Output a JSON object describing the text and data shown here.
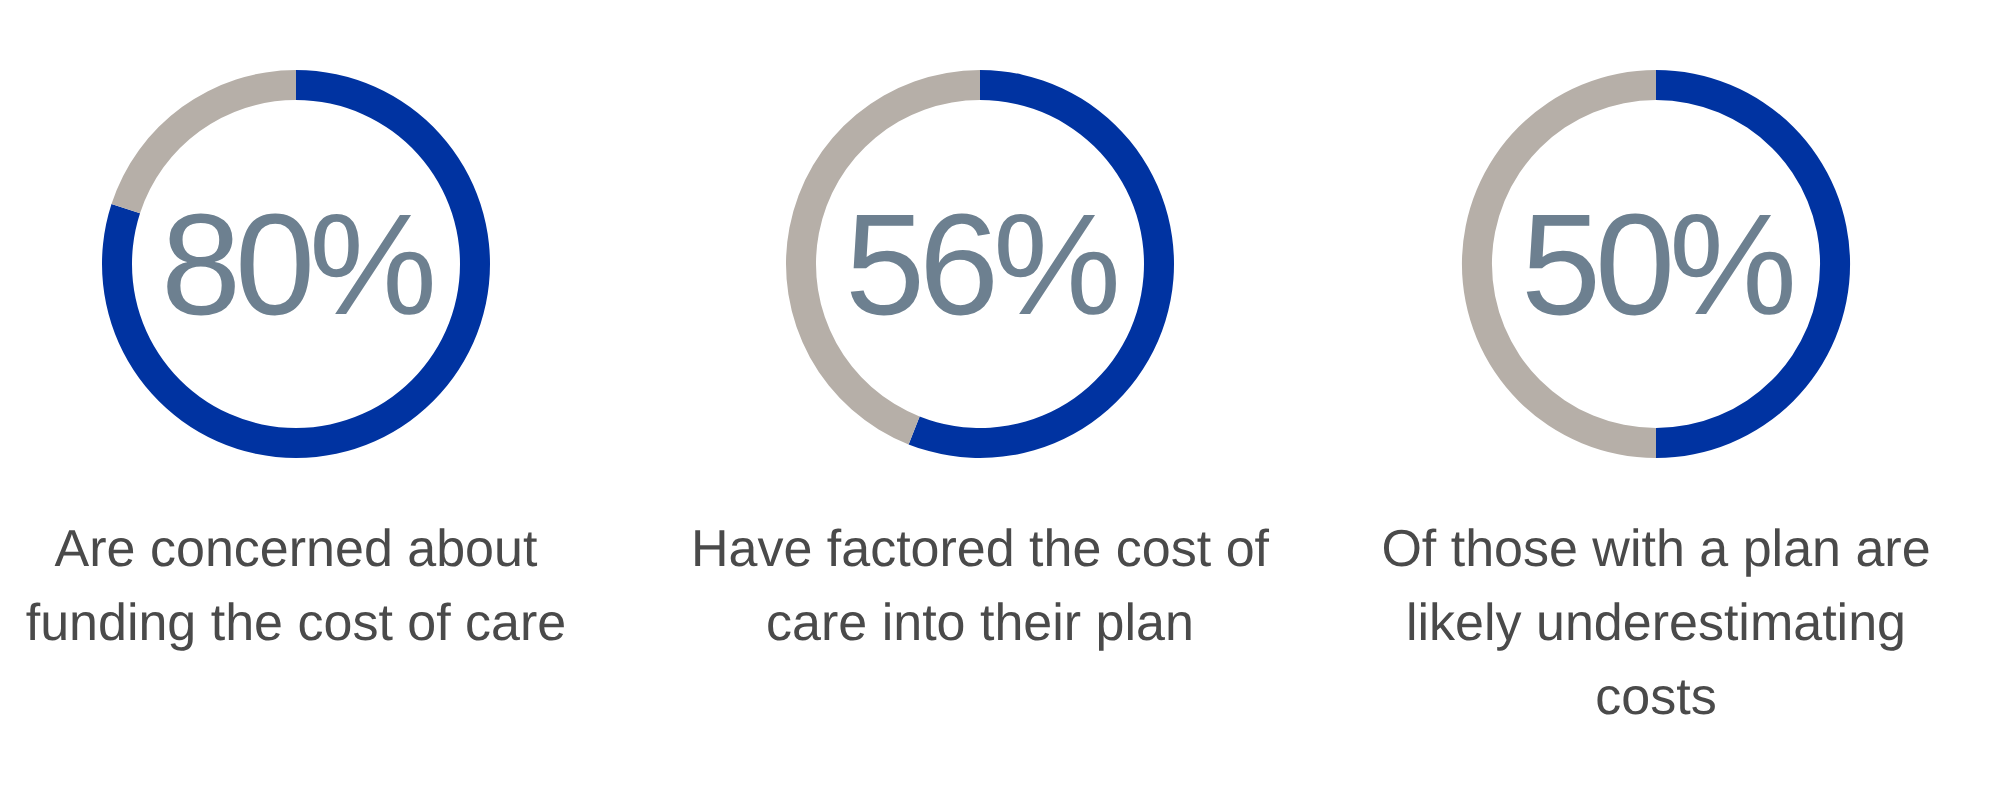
{
  "chart_data": [
    {
      "type": "donut",
      "title": "Are concerned about funding the cost of care",
      "categories": [
        null,
        null
      ],
      "values": [
        80,
        20
      ],
      "colors": [
        "#0033a1",
        "#b6afa8"
      ],
      "value_labels": [
        "80%",
        null
      ]
    },
    {
      "type": "donut",
      "title": "Have factored the cost of care into their plan",
      "categories": [
        null,
        null
      ],
      "values": [
        56,
        44
      ],
      "colors": [
        "#0033a1",
        "#b6afa8"
      ],
      "value_labels": [
        "56%",
        null
      ]
    },
    {
      "type": "donut",
      "title": "Of those with a plan are likely underestimating costs",
      "categories": [
        null,
        null
      ],
      "values": [
        50,
        50
      ],
      "colors": [
        "#0033a1",
        "#b6afa8"
      ],
      "value_labels": [
        "50%",
        null
      ]
    }
  ]
}
